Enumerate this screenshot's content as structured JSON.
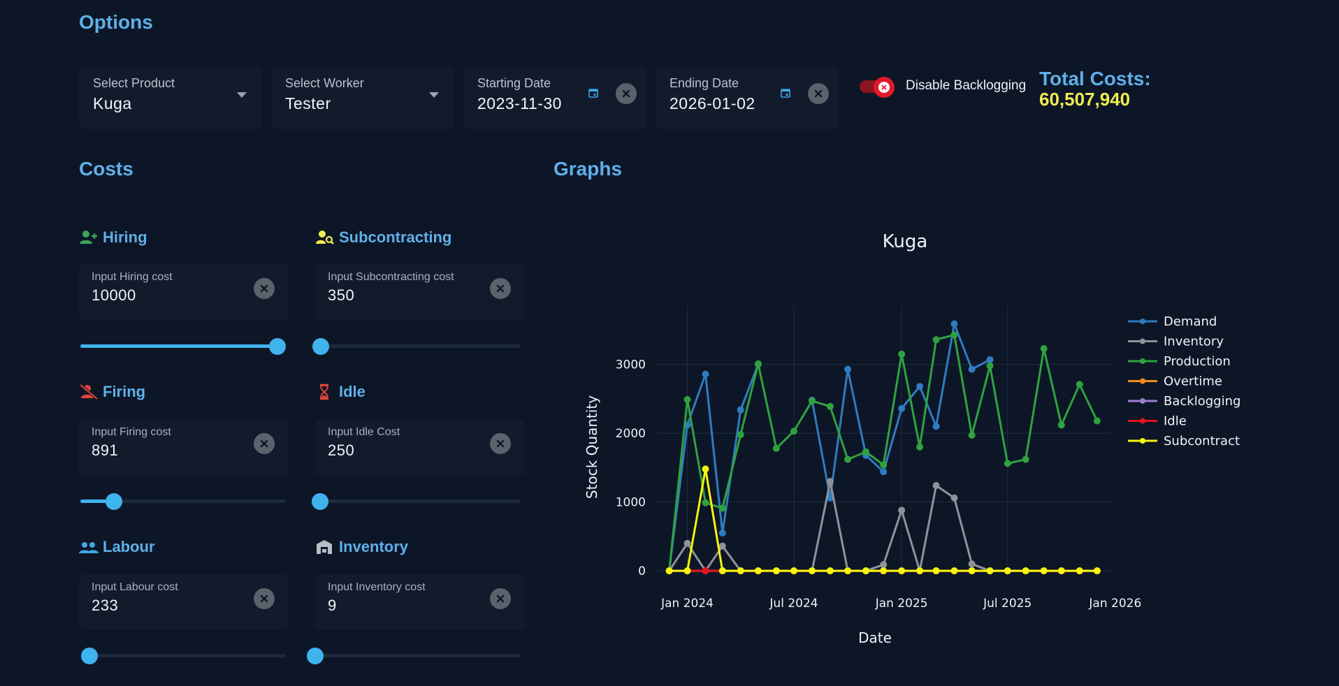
{
  "options": {
    "title": "Options",
    "product": {
      "label": "Select Product",
      "value": "Kuga"
    },
    "worker": {
      "label": "Select Worker",
      "value": "Tester"
    },
    "start_date": {
      "label": "Starting Date",
      "value": "2023-11-30"
    },
    "end_date": {
      "label": "Ending Date",
      "value": "2026-01-02"
    },
    "backlogging": {
      "label": "Disable Backlogging",
      "enabled": false
    },
    "total": {
      "label": "Total Costs:",
      "value": "60,507,940"
    }
  },
  "costs": {
    "title": "Costs",
    "hiring": {
      "title": "Hiring",
      "label": "Input Hiring cost",
      "value": "10000",
      "slider": 1.0,
      "icon": "person-add-icon"
    },
    "subcontracting": {
      "title": "Subcontracting",
      "label": "Input Subcontracting cost",
      "value": "350",
      "slider": 0.0,
      "icon": "person-search-icon"
    },
    "firing": {
      "title": "Firing",
      "label": "Input Firing cost",
      "value": "891",
      "slider": 0.17,
      "icon": "person-off-icon"
    },
    "idle": {
      "title": "Idle",
      "label": "Input Idle Cost",
      "value": "250",
      "slider": 0.01,
      "icon": "hourglass-icon"
    },
    "labour": {
      "title": "Labour",
      "label": "Input Labour cost",
      "value": "233",
      "slider": 0.02,
      "icon": "group-icon"
    },
    "inventory": {
      "title": "Inventory",
      "label": "Input Inventory cost",
      "value": "9",
      "slider": 0.0,
      "icon": "warehouse-icon"
    }
  },
  "graphs": {
    "title": "Graphs"
  },
  "chart_data": {
    "type": "line",
    "title": "Kuga",
    "xlabel": "Date",
    "ylabel": "Stock Quantity",
    "x_tick_labels": [
      "Jan 2024",
      "Jul 2024",
      "Jan 2025",
      "Jul 2025",
      "Jan 2026"
    ],
    "y_ticks": [
      0,
      1000,
      2000,
      3000
    ],
    "ylim": [
      -100,
      3850
    ],
    "xlim": [
      "2023-11-10",
      "2025-12-25"
    ],
    "grid": true,
    "legend_position": "right",
    "x": [
      "2023-12-01",
      "2024-01-01",
      "2024-02-01",
      "2024-03-01",
      "2024-04-01",
      "2024-05-01",
      "2024-06-01",
      "2024-07-01",
      "2024-08-01",
      "2024-09-01",
      "2024-10-01",
      "2024-11-01",
      "2024-12-01",
      "2025-01-01",
      "2025-02-01",
      "2025-03-01",
      "2025-04-01",
      "2025-05-01",
      "2025-06-01",
      "2025-07-01",
      "2025-08-01",
      "2025-09-01",
      "2025-10-01",
      "2025-11-01",
      "2025-12-01"
    ],
    "series": [
      {
        "name": "Demand",
        "color": "#2f7cc0",
        "values": [
          0,
          2120,
          2860,
          550,
          2340,
          3000,
          null,
          null,
          2480,
          1060,
          2930,
          1680,
          1440,
          2360,
          2680,
          2100,
          3590,
          2930,
          3070,
          null,
          null,
          null,
          null,
          null,
          null
        ]
      },
      {
        "name": "Inventory",
        "color": "#8f9299",
        "values": [
          0,
          400,
          0,
          360,
          0,
          0,
          0,
          0,
          0,
          1300,
          0,
          0,
          90,
          880,
          0,
          1240,
          1060,
          100,
          0,
          0,
          0,
          0,
          0,
          0,
          0
        ]
      },
      {
        "name": "Production",
        "color": "#2fa23f",
        "values": [
          0,
          2490,
          990,
          910,
          1980,
          3010,
          1780,
          2030,
          2470,
          2390,
          1620,
          1730,
          1540,
          3150,
          1800,
          3360,
          3430,
          1970,
          2980,
          1560,
          1620,
          3230,
          2120,
          2710,
          2180
        ]
      },
      {
        "name": "Overtime",
        "color": "#f08a1c",
        "values": [
          0,
          0,
          0,
          0,
          0,
          0,
          0,
          0,
          0,
          0,
          0,
          0,
          0,
          0,
          0,
          0,
          0,
          0,
          0,
          0,
          0,
          0,
          0,
          0,
          0
        ]
      },
      {
        "name": "Backlogging",
        "color": "#9b7fd4",
        "values": [
          0,
          0,
          0,
          0,
          0,
          0,
          0,
          0,
          0,
          0,
          0,
          0,
          0,
          0,
          0,
          0,
          0,
          0,
          0,
          0,
          0,
          0,
          0,
          0,
          0
        ]
      },
      {
        "name": "Idle",
        "color": "#e3121b",
        "values": [
          0,
          0,
          0,
          0,
          0,
          0,
          0,
          0,
          0,
          0,
          0,
          0,
          0,
          0,
          0,
          0,
          0,
          0,
          0,
          0,
          0,
          0,
          0,
          0,
          0
        ]
      },
      {
        "name": "Subcontract",
        "color": "#f5f50f",
        "values": [
          0,
          0,
          1480,
          0,
          0,
          0,
          0,
          0,
          0,
          0,
          0,
          0,
          0,
          0,
          0,
          0,
          0,
          0,
          0,
          0,
          0,
          0,
          0,
          0,
          0
        ]
      }
    ]
  }
}
